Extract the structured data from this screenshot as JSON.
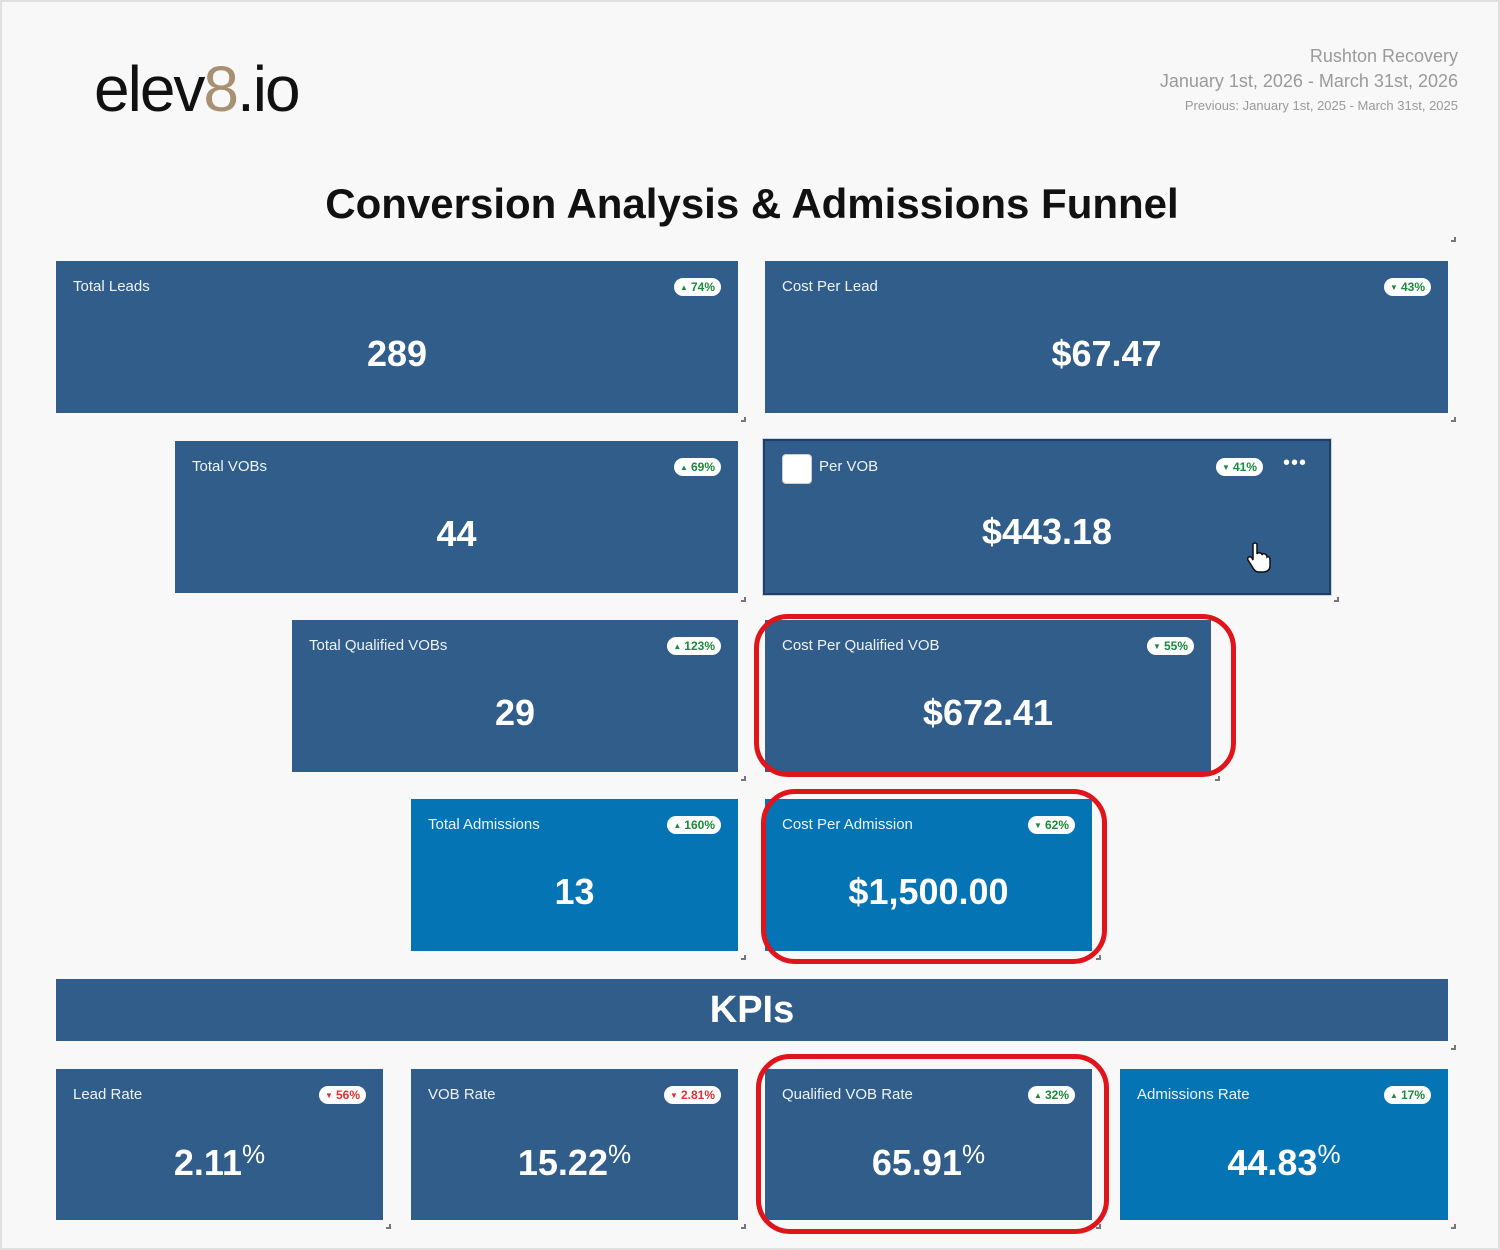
{
  "brand": {
    "logo_prefix": "elev",
    "logo_accent": "8",
    "logo_suffix": ".io"
  },
  "header": {
    "client_name": "Rushton Recovery",
    "date_range": "January 1st, 2026 - March 31st, 2026",
    "previous_range": "Previous: January 1st, 2025 - March 31st, 2025"
  },
  "page_title": "Conversion Analysis & Admissions Funnel",
  "funnel": {
    "total_leads": {
      "label": "Total Leads",
      "value": "289",
      "change": "74%",
      "direction": "up"
    },
    "cost_per_lead": {
      "label": "Cost Per Lead",
      "value": "$67.47",
      "change": "43%",
      "direction": "down-good"
    },
    "total_vobs": {
      "label": "Total VOBs",
      "value": "44",
      "change": "69%",
      "direction": "up"
    },
    "cost_per_vob": {
      "label": "Per VOB",
      "value": "$443.18",
      "change": "41%",
      "direction": "down-good"
    },
    "total_qualified_vobs": {
      "label": "Total Qualified VOBs",
      "value": "29",
      "change": "123%",
      "direction": "up"
    },
    "cost_per_qualified_vob": {
      "label": "Cost Per Qualified VOB",
      "value": "$672.41",
      "change": "55%",
      "direction": "down-good"
    },
    "total_admissions": {
      "label": "Total Admissions",
      "value": "13",
      "change": "160%",
      "direction": "up"
    },
    "cost_per_admission": {
      "label": "Cost Per Admission",
      "value": "$1,500.00",
      "change": "62%",
      "direction": "down-good"
    }
  },
  "kpi_section_title": "KPIs",
  "kpis": {
    "lead_rate": {
      "label": "Lead Rate",
      "value": "2.11",
      "unit": "%",
      "change": "56%",
      "direction": "down-bad"
    },
    "vob_rate": {
      "label": "VOB Rate",
      "value": "15.22",
      "unit": "%",
      "change": "2.81%",
      "direction": "down-bad"
    },
    "qualified_vob_rate": {
      "label": "Qualified VOB Rate",
      "value": "65.91",
      "unit": "%",
      "change": "32%",
      "direction": "up"
    },
    "admissions_rate": {
      "label": "Admissions Rate",
      "value": "44.83",
      "unit": "%",
      "change": "17%",
      "direction": "up"
    }
  },
  "icons": {
    "up": "▲",
    "down": "▼",
    "more": "•••"
  },
  "colors": {
    "card": "#305d89",
    "card_bright": "#0474b5",
    "highlight": "#e0141b",
    "good": "#1b8a3a",
    "bad": "#e03030"
  }
}
